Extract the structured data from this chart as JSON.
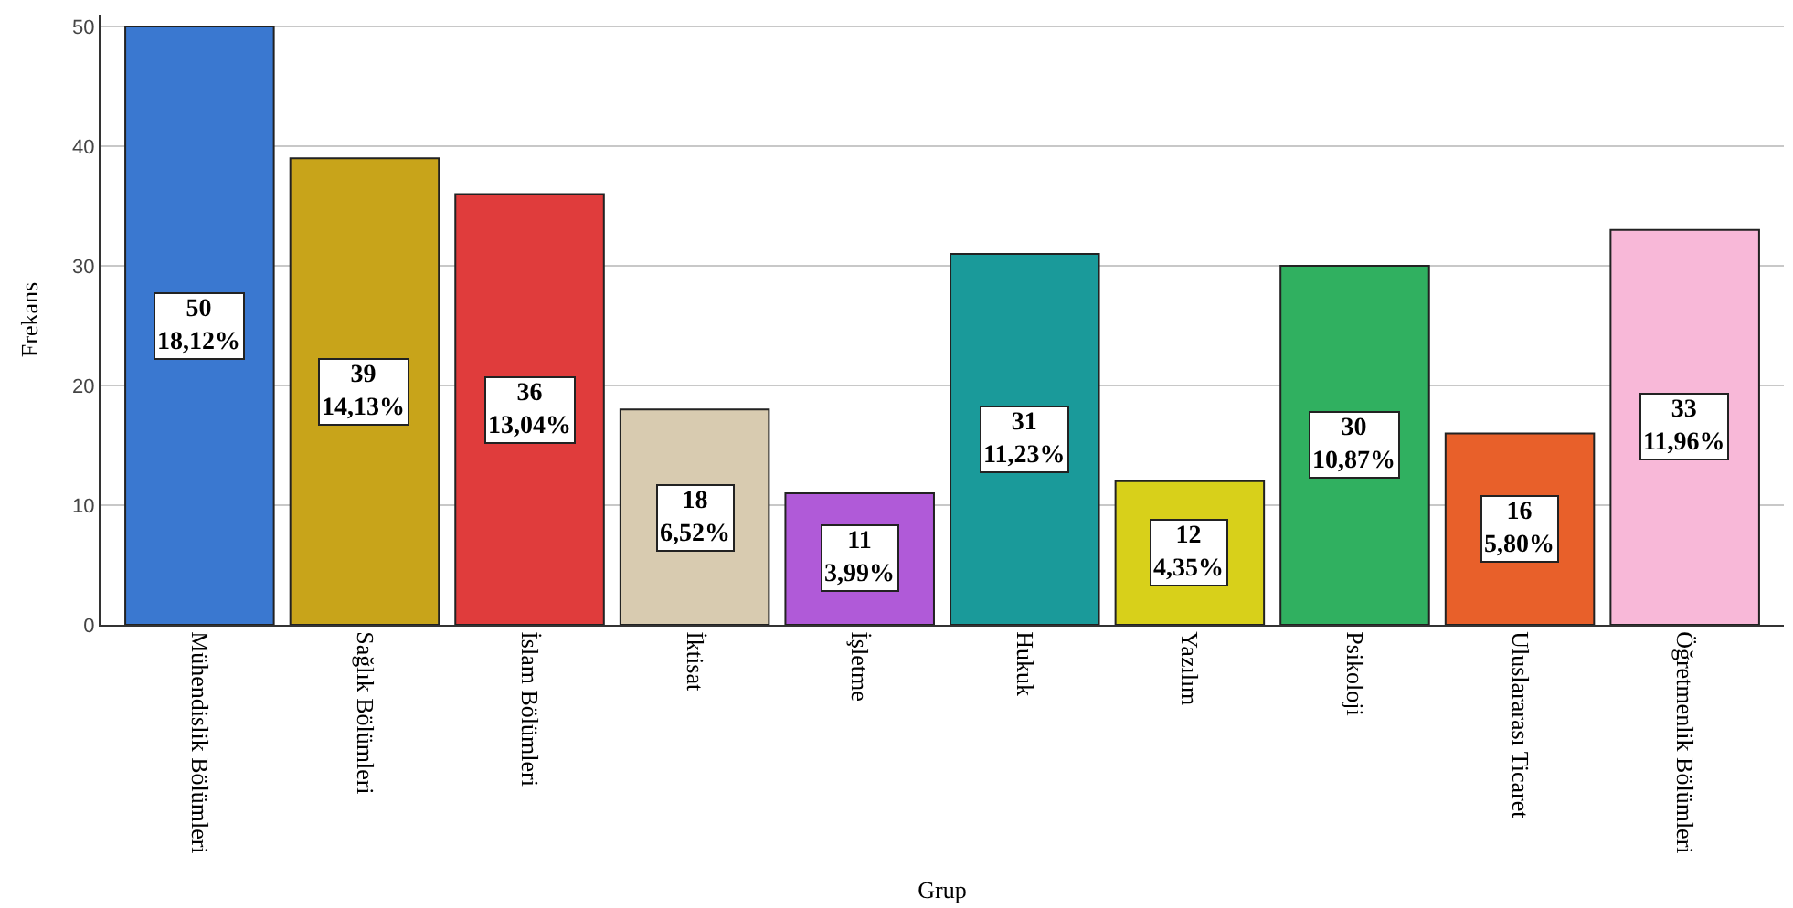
{
  "chart_data": {
    "type": "bar",
    "xlabel": "Grup",
    "ylabel": "Frekans",
    "categories": [
      "Mühendislik Bölümleri",
      "Sağlık Bölümleri",
      "İslam Bölümleri",
      "İktisat",
      "İşletme",
      "Hukuk",
      "Yazılım",
      "Psikoloji",
      "Uluslararası Ticaret",
      "Öğretmenlik Bölümleri"
    ],
    "values": [
      50,
      39,
      36,
      18,
      11,
      31,
      12,
      30,
      16,
      33
    ],
    "colors": [
      "#3a78d0",
      "#c8a41a",
      "#e03c3c",
      "#d8cbb0",
      "#b05ad8",
      "#1a9a9a",
      "#d8d01a",
      "#30b060",
      "#e8602a",
      "#f8b8d8"
    ],
    "value_labels": [
      "50\n18,12%",
      "39\n14,13%",
      "36\n13,04%",
      "18\n6,52%",
      "11\n3,99%",
      "31\n11,23%",
      "12\n4,35%",
      "30\n10,87%",
      "16\n5,80%",
      "33\n11,96%"
    ],
    "ylim": [
      0,
      51
    ],
    "yticks": [
      0,
      10,
      20,
      30,
      40,
      50
    ],
    "grid": "y"
  }
}
